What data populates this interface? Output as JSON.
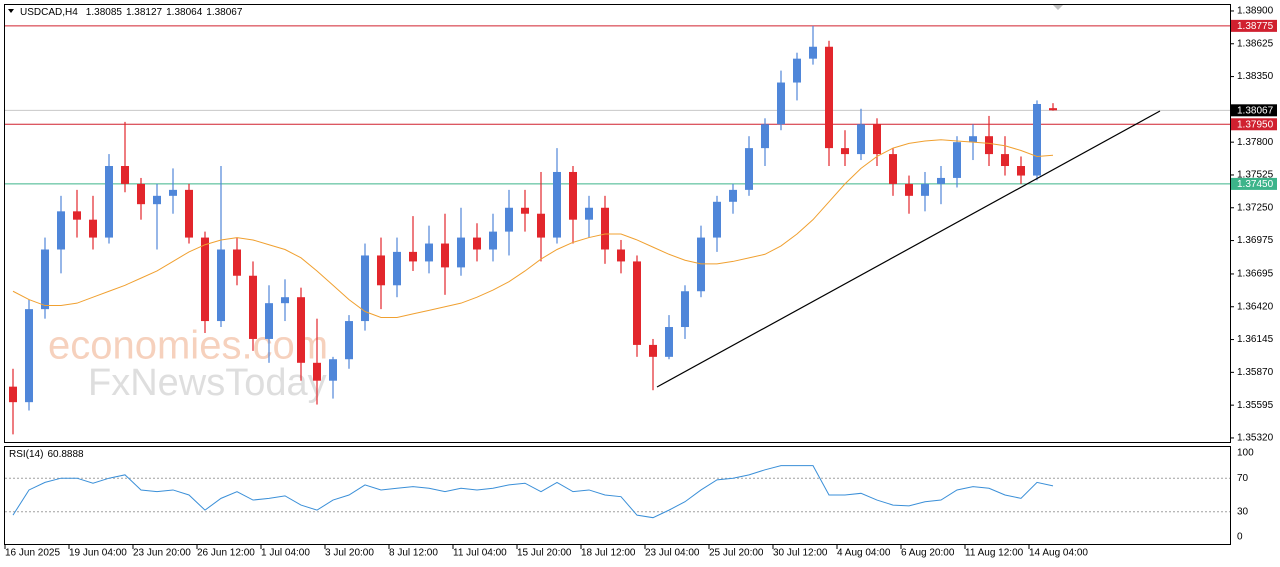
{
  "chart_data": {
    "type": "candlestick",
    "symbol": "USDCAD,H4",
    "categories": [
      "16 Jun 2025",
      null,
      null,
      null,
      "19 Jun 04:00",
      null,
      null,
      null,
      "23 Jun 20:00",
      null,
      null,
      null,
      "26 Jun 12:00",
      null,
      null,
      null,
      "1 Jul 04:00",
      null,
      null,
      null,
      "3 Jul 20:00",
      null,
      null,
      null,
      "8 Jul 12:00",
      null,
      null,
      null,
      "11 Jul 04:00",
      null,
      null,
      null,
      "15 Jul 20:00",
      null,
      null,
      null,
      "18 Jul 12:00",
      null,
      null,
      null,
      "23 Jul 04:00",
      null,
      null,
      null,
      "25 Jul 20:00",
      null,
      null,
      null,
      "30 Jul 12:00",
      null,
      null,
      null,
      "4 Aug 04:00",
      null,
      null,
      null,
      "6 Aug 20:00",
      null,
      null,
      null,
      "11 Aug 12:00",
      null,
      null,
      null,
      "14 Aug 04:00",
      null
    ],
    "open": [
      1.3575,
      1.3562,
      1.364,
      1.369,
      1.3722,
      1.3715,
      1.37,
      1.376,
      1.3745,
      1.3728,
      1.3735,
      1.374,
      1.37,
      1.363,
      1.369,
      1.3668,
      1.3615,
      1.3645,
      1.365,
      1.3595,
      1.358,
      1.3598,
      1.363,
      1.3685,
      1.366,
      1.3688,
      1.368,
      1.3695,
      1.3675,
      1.37,
      1.369,
      1.3705,
      1.3725,
      1.372,
      1.37,
      1.3755,
      1.3715,
      1.3725,
      1.369,
      1.368,
      1.361,
      1.36,
      1.3625,
      1.3655,
      1.37,
      1.373,
      1.374,
      1.3775,
      1.3795,
      1.383,
      1.385,
      1.386,
      1.3775,
      1.377,
      1.3795,
      1.377,
      1.3745,
      1.3735,
      1.3745,
      1.375,
      1.378,
      1.3785,
      1.377,
      1.376,
      1.3752,
      1.38085
    ],
    "high": [
      1.359,
      1.3648,
      1.37,
      1.3735,
      1.374,
      1.3735,
      1.377,
      1.3797,
      1.375,
      1.3745,
      1.3758,
      1.3745,
      1.3705,
      1.376,
      1.37,
      1.368,
      1.366,
      1.3665,
      1.3658,
      1.3632,
      1.36,
      1.3635,
      1.3695,
      1.37,
      1.37,
      1.3718,
      1.371,
      1.372,
      1.3725,
      1.3712,
      1.372,
      1.374,
      1.374,
      1.3755,
      1.3775,
      1.376,
      1.3735,
      1.3735,
      1.3698,
      1.3685,
      1.3615,
      1.3635,
      1.366,
      1.371,
      1.3735,
      1.3745,
      1.3785,
      1.38,
      1.384,
      1.3855,
      1.38775,
      1.3865,
      1.379,
      1.3808,
      1.38,
      1.3775,
      1.3752,
      1.3755,
      1.376,
      1.3785,
      1.3795,
      1.3802,
      1.3785,
      1.3768,
      1.3815,
      1.38127
    ],
    "low": [
      1.3535,
      1.3555,
      1.3632,
      1.367,
      1.37,
      1.369,
      1.3695,
      1.3738,
      1.3715,
      1.369,
      1.372,
      1.3695,
      1.362,
      1.3625,
      1.366,
      1.3605,
      1.3595,
      1.363,
      1.358,
      1.356,
      1.3565,
      1.359,
      1.3622,
      1.364,
      1.365,
      1.3672,
      1.367,
      1.3652,
      1.3668,
      1.368,
      1.368,
      1.3685,
      1.3705,
      1.368,
      1.3695,
      1.3695,
      1.37,
      1.3678,
      1.367,
      1.36,
      1.3572,
      1.3598,
      1.3615,
      1.365,
      1.3688,
      1.372,
      1.3735,
      1.376,
      1.379,
      1.3815,
      1.3845,
      1.376,
      1.376,
      1.3765,
      1.376,
      1.3735,
      1.372,
      1.3722,
      1.3728,
      1.3742,
      1.3765,
      1.376,
      1.3752,
      1.3745,
      1.3748,
      1.38064
    ],
    "close": [
      1.3562,
      1.364,
      1.369,
      1.3722,
      1.3715,
      1.37,
      1.376,
      1.3745,
      1.3728,
      1.3735,
      1.374,
      1.37,
      1.363,
      1.369,
      1.3668,
      1.3615,
      1.3645,
      1.365,
      1.3595,
      1.358,
      1.3598,
      1.363,
      1.3685,
      1.366,
      1.3688,
      1.368,
      1.3695,
      1.3675,
      1.37,
      1.369,
      1.3705,
      1.3725,
      1.372,
      1.37,
      1.3755,
      1.3715,
      1.3725,
      1.369,
      1.368,
      1.361,
      1.36,
      1.3625,
      1.3655,
      1.37,
      1.373,
      1.374,
      1.3775,
      1.3795,
      1.383,
      1.385,
      1.386,
      1.3775,
      1.377,
      1.3795,
      1.377,
      1.3745,
      1.3735,
      1.3745,
      1.375,
      1.378,
      1.3785,
      1.377,
      1.376,
      1.3752,
      1.3812,
      1.38067
    ],
    "up_color": "#4f86d9",
    "down_color": "#e2262c",
    "ylim": [
      1.35286,
      1.3895
    ],
    "yticks": [
      {
        "value": 1.389,
        "label": "1.38900"
      },
      1.38625,
      {
        "value": 1.3835,
        "label": "1.38350"
      },
      {
        "value": 1.378,
        "label": "1.37800"
      },
      1.37525,
      {
        "value": 1.3725,
        "label": "1.37250"
      },
      1.36975,
      1.36695,
      {
        "value": 1.3642,
        "label": "1.36420"
      },
      1.36145,
      {
        "value": 1.3587,
        "label": "1.35870"
      },
      1.35595,
      {
        "value": 1.3532,
        "label": "1.35320"
      }
    ],
    "levels": [
      {
        "value": 1.38775,
        "color": "#d0202f",
        "line_color": "#d0202f"
      },
      {
        "value": 1.38067,
        "color": "#000000",
        "line_color": "#c8c8c8"
      },
      {
        "value": 1.3795,
        "label": "1.37950",
        "color": "#d0202f",
        "line_color": "#d0202f"
      },
      {
        "value": 1.3745,
        "label": "1.37450",
        "color": "#3cb48a",
        "line_color": "#3cb48a"
      }
    ],
    "ma": {
      "color": "#f0a030",
      "values": [
        1.3655,
        1.3648,
        1.3643,
        1.3643,
        1.3645,
        1.365,
        1.3655,
        1.366,
        1.3666,
        1.3672,
        1.368,
        1.3688,
        1.3694,
        1.3698,
        1.37,
        1.3698,
        1.3694,
        1.369,
        1.3683,
        1.3672,
        1.366,
        1.3648,
        1.3638,
        1.3633,
        1.3633,
        1.3636,
        1.3639,
        1.3642,
        1.3645,
        1.365,
        1.3656,
        1.3663,
        1.3672,
        1.3682,
        1.369,
        1.3696,
        1.37,
        1.3703,
        1.3703,
        1.3698,
        1.3692,
        1.3686,
        1.3681,
        1.3678,
        1.3678,
        1.368,
        1.3683,
        1.3686,
        1.3693,
        1.3703,
        1.3715,
        1.373,
        1.3745,
        1.3758,
        1.3768,
        1.3775,
        1.3779,
        1.3781,
        1.3782,
        1.3781,
        1.378,
        1.3779,
        1.3777,
        1.3773,
        1.3768,
        1.3769
      ]
    },
    "rsi": {
      "label": "RSI(14)",
      "color": "#3a8fd8",
      "ylim": [
        0,
        100
      ],
      "yticks": [
        100,
        70,
        30,
        0
      ],
      "values": [
        26,
        56,
        65,
        70,
        70,
        64,
        70,
        74,
        56,
        54,
        56,
        50,
        32,
        46,
        54,
        44,
        46,
        49,
        38,
        32,
        44,
        50,
        62,
        56,
        58,
        60,
        58,
        54,
        58,
        56,
        58,
        62,
        64,
        54,
        65,
        54,
        56,
        50,
        48,
        26,
        23,
        32,
        42,
        56,
        68,
        70,
        74,
        80,
        85,
        85,
        85,
        50,
        50,
        52,
        44,
        38,
        37,
        42,
        44,
        56,
        60,
        58,
        50,
        46,
        65,
        60.8888
      ]
    },
    "watermark": [
      "economies.com",
      "FxNewsToday"
    ]
  }
}
